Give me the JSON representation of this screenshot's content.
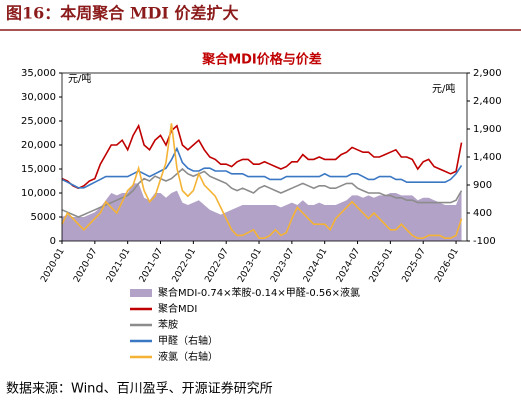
{
  "header": "图16：本周聚合 MDI 价差扩大",
  "source": "数据来源：Wind、百川盈孚、开源证券研究所",
  "chart_data": {
    "type": "line",
    "title": "聚合MDI价格与价差",
    "y_unit": "元/吨",
    "y2_unit": "元/吨",
    "x": [
      "2020-01",
      "2020-02",
      "2020-03",
      "2020-04",
      "2020-05",
      "2020-06",
      "2020-07",
      "2020-08",
      "2020-09",
      "2020-10",
      "2020-11",
      "2020-12",
      "2021-01",
      "2021-02",
      "2021-03",
      "2021-04",
      "2021-05",
      "2021-06",
      "2021-07",
      "2021-08",
      "2021-09",
      "2021-10",
      "2021-11",
      "2021-12",
      "2022-01",
      "2022-02",
      "2022-03",
      "2022-04",
      "2022-05",
      "2022-06",
      "2022-07",
      "2022-08",
      "2022-09",
      "2022-10",
      "2022-11",
      "2022-12",
      "2023-01",
      "2023-02",
      "2023-03",
      "2023-04",
      "2023-05",
      "2023-06",
      "2023-07",
      "2023-08",
      "2023-09",
      "2023-10",
      "2023-11",
      "2023-12",
      "2024-01",
      "2024-02",
      "2024-03",
      "2024-04",
      "2024-05",
      "2024-06",
      "2024-07",
      "2024-08",
      "2024-09",
      "2024-10",
      "2024-11",
      "2024-12",
      "2025-01",
      "2025-02",
      "2025-03",
      "2025-04",
      "2025-05",
      "2025-06",
      "2025-07",
      "2025-08",
      "2025-09",
      "2025-10",
      "2025-11",
      "2025-12",
      "2026-01",
      "2026-02"
    ],
    "xticks": [
      "2020-01",
      "2020-07",
      "2021-01",
      "2021-07",
      "2022-01",
      "2022-07",
      "2023-01",
      "2023-07",
      "2024-01",
      "2024-07",
      "2025-01",
      "2025-07",
      "2026-01"
    ],
    "ylim": [
      0,
      35000
    ],
    "yticks": [
      0,
      5000,
      {
        "value": 10000,
        "label": "10,000"
      },
      {
        "value": 15000,
        "label": "15,000"
      },
      {
        "value": 20000,
        "label": "20,000"
      },
      {
        "value": 25000,
        "label": "25,000"
      },
      {
        "value": 30000,
        "label": "30,000"
      },
      {
        "value": 35000,
        "label": "35,000"
      }
    ],
    "y2lim": [
      -100,
      2900
    ],
    "y2ticks": [
      -100,
      400,
      900,
      {
        "value": 1400,
        "label": "1,400"
      },
      {
        "value": 1900,
        "label": "1,900"
      },
      {
        "value": 2400,
        "label": "2,400"
      },
      {
        "value": 2900,
        "label": "2,900"
      }
    ],
    "series": [
      {
        "name": "聚合MDI-0.74×苯胺-0.14×甲醛-0.56×液氯",
        "type": "area",
        "color": "#b3a2c7",
        "values": [
          5000,
          5500,
          5000,
          5000,
          5000,
          5500,
          6000,
          7000,
          8500,
          10000,
          9500,
          10000,
          10000,
          12000,
          12000,
          9000,
          8500,
          10000,
          10000,
          9000,
          10000,
          10500,
          8000,
          7500,
          8000,
          8500,
          7500,
          6500,
          6000,
          5500,
          6000,
          6500,
          7000,
          7500,
          7500,
          7500,
          7500,
          7500,
          7500,
          7500,
          7000,
          7500,
          8000,
          7500,
          8500,
          7500,
          7500,
          8000,
          7500,
          7500,
          7500,
          8000,
          8500,
          9500,
          9500,
          9000,
          9500,
          9000,
          9500,
          9500,
          10000,
          10000,
          9500,
          9500,
          9500,
          8500,
          9000,
          9000,
          8500,
          8000,
          7500,
          7500,
          7500,
          10500
        ]
      },
      {
        "name": "聚合MDI",
        "color": "#c00000",
        "values": [
          13000,
          12500,
          11500,
          11000,
          11500,
          12500,
          13000,
          16000,
          18000,
          20000,
          20000,
          21000,
          19000,
          22000,
          24000,
          20000,
          19000,
          21000,
          22000,
          20000,
          23000,
          24000,
          20000,
          19000,
          20000,
          21000,
          19000,
          17500,
          17000,
          16000,
          16000,
          15500,
          16500,
          17000,
          17000,
          16000,
          16000,
          16500,
          16000,
          15500,
          15000,
          15500,
          16500,
          16500,
          18000,
          17000,
          17000,
          17500,
          17000,
          17000,
          17000,
          18000,
          18500,
          19500,
          19000,
          18500,
          18500,
          17500,
          17500,
          18000,
          18500,
          19000,
          17500,
          17500,
          17000,
          15000,
          16500,
          17000,
          15500,
          15000,
          14500,
          14000,
          14500,
          20500
        ]
      },
      {
        "name": "苯胺",
        "color": "#8c8c8c",
        "values": [
          6500,
          6000,
          5500,
          5000,
          5500,
          6000,
          6500,
          7000,
          7500,
          8000,
          8500,
          9000,
          9500,
          10500,
          12000,
          13000,
          12500,
          13500,
          13000,
          12500,
          13000,
          14000,
          15000,
          14000,
          13500,
          14000,
          14500,
          13500,
          13000,
          12500,
          12000,
          11000,
          10500,
          11000,
          10500,
          10000,
          11000,
          11500,
          11000,
          10500,
          10000,
          10500,
          11000,
          11500,
          12000,
          11500,
          11000,
          11500,
          11500,
          11000,
          11000,
          11500,
          12000,
          12000,
          11000,
          10500,
          10000,
          10000,
          10000,
          9500,
          9500,
          9000,
          9000,
          8500,
          8500,
          8000,
          8000,
          8000,
          8000,
          8000,
          8000,
          8000,
          8500,
          10500
        ]
      },
      {
        "name": "甲醛（右轴）",
        "color": "#3b78c4",
        "axis": "y2",
        "values": [
          1000,
          950,
          900,
          850,
          850,
          900,
          950,
          1000,
          1050,
          1050,
          1050,
          1050,
          1050,
          1100,
          1150,
          1100,
          1050,
          1100,
          1150,
          1200,
          1350,
          1550,
          1300,
          1200,
          1150,
          1150,
          1200,
          1200,
          1150,
          1150,
          1150,
          1100,
          1100,
          1100,
          1050,
          1050,
          1050,
          1050,
          1000,
          1000,
          1000,
          1050,
          1050,
          1050,
          1050,
          1050,
          1050,
          1050,
          1100,
          1050,
          1050,
          1050,
          1050,
          1100,
          1100,
          1050,
          1000,
          1000,
          1050,
          1050,
          1050,
          1000,
          1000,
          950,
          950,
          950,
          950,
          950,
          950,
          950,
          950,
          1000,
          1100,
          1250
        ]
      },
      {
        "name": "液氯（右轴）",
        "color": "#f5b335",
        "axis": "y2",
        "values": [
          200,
          400,
          300,
          200,
          100,
          200,
          300,
          400,
          600,
          500,
          400,
          600,
          800,
          900,
          1200,
          800,
          600,
          700,
          1000,
          1300,
          2000,
          1200,
          800,
          700,
          800,
          1100,
          900,
          800,
          700,
          500,
          300,
          100,
          0,
          0,
          50,
          100,
          -50,
          -50,
          0,
          100,
          0,
          50,
          300,
          500,
          400,
          300,
          200,
          200,
          200,
          100,
          300,
          400,
          500,
          600,
          500,
          400,
          300,
          400,
          300,
          200,
          100,
          100,
          200,
          100,
          0,
          -50,
          -50,
          0,
          0,
          0,
          -50,
          -50,
          0,
          300
        ]
      }
    ]
  }
}
